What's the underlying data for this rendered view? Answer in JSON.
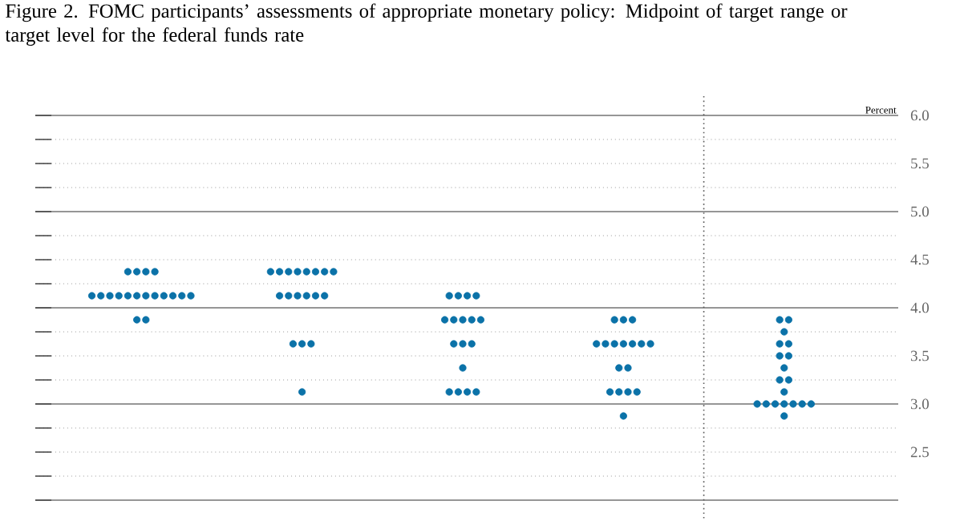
{
  "chart_data": {
    "type": "scatter",
    "title": "Figure 2. FOMC participants’ assessments of appropriate monetary policy: Midpoint of target range or target level for the federal funds rate",
    "ylabel": "Percent",
    "categories": [
      null,
      null,
      null,
      null,
      null
    ],
    "series": [
      {
        "color": "#0b72a8",
        "values": [
          4.375,
          4.375,
          4.125,
          3.875,
          3.875
        ]
      },
      {
        "color": "#0b72a8",
        "values": [
          4.375,
          4.375,
          4.125,
          3.875,
          3.875
        ]
      },
      {
        "color": "#0b72a8",
        "values": [
          4.375,
          4.375,
          4.125,
          3.875,
          3.75
        ]
      },
      {
        "color": "#0b72a8",
        "values": [
          4.375,
          4.375,
          4.125,
          3.625,
          3.625
        ]
      },
      {
        "color": "#0b72a8",
        "values": [
          4.125,
          4.375,
          3.875,
          3.625,
          3.625
        ]
      },
      {
        "color": "#0b72a8",
        "values": [
          4.125,
          4.375,
          3.875,
          3.625,
          3.5
        ]
      },
      {
        "color": "#0b72a8",
        "values": [
          4.125,
          4.375,
          3.875,
          3.625,
          3.5
        ]
      },
      {
        "color": "#0b72a8",
        "values": [
          4.125,
          4.375,
          3.875,
          3.625,
          3.375
        ]
      },
      {
        "color": "#0b72a8",
        "values": [
          4.125,
          4.125,
          3.875,
          3.625,
          3.25
        ]
      },
      {
        "color": "#0b72a8",
        "values": [
          4.125,
          4.125,
          3.625,
          3.625,
          3.25
        ]
      },
      {
        "color": "#0b72a8",
        "values": [
          4.125,
          4.125,
          3.625,
          3.375,
          3.125
        ]
      },
      {
        "color": "#0b72a8",
        "values": [
          4.125,
          4.125,
          3.625,
          3.375,
          3.0
        ]
      },
      {
        "color": "#0b72a8",
        "values": [
          4.125,
          4.125,
          3.375,
          3.125,
          3.0
        ]
      },
      {
        "color": "#0b72a8",
        "values": [
          4.125,
          4.125,
          3.125,
          3.125,
          3.0
        ]
      },
      {
        "color": "#0b72a8",
        "values": [
          4.125,
          3.625,
          3.125,
          3.125,
          3.0
        ]
      },
      {
        "color": "#0b72a8",
        "values": [
          4.125,
          3.625,
          3.125,
          3.125,
          3.0
        ]
      },
      {
        "color": "#0b72a8",
        "values": [
          3.875,
          3.625,
          3.125,
          2.875,
          3.0
        ]
      },
      {
        "color": "#0b72a8",
        "values": [
          3.875,
          3.125,
          null,
          null,
          3.0
        ]
      },
      {
        "color": "#0b72a8",
        "values": [
          null,
          null,
          null,
          null,
          2.875
        ]
      }
    ],
    "ylim": [
      2.0,
      6.0
    ],
    "yticks": [
      {
        "value": 2.0,
        "label": null
      },
      {
        "value": 2.25,
        "label": null
      },
      2.5,
      {
        "value": 2.75,
        "label": null
      },
      {
        "value": 3.0,
        "label": "3.0"
      },
      {
        "value": 3.25,
        "label": null
      },
      3.5,
      {
        "value": 3.75,
        "label": null
      },
      {
        "value": 4.0,
        "label": "4.0"
      },
      {
        "value": 4.25,
        "label": null
      },
      4.5,
      {
        "value": 4.75,
        "label": null
      },
      {
        "value": 5.0,
        "label": "5.0"
      },
      {
        "value": 5.25,
        "label": null
      },
      5.5,
      {
        "value": 5.75,
        "label": null
      },
      {
        "value": 6.0,
        "label": "6.0"
      }
    ],
    "grid": "y"
  }
}
